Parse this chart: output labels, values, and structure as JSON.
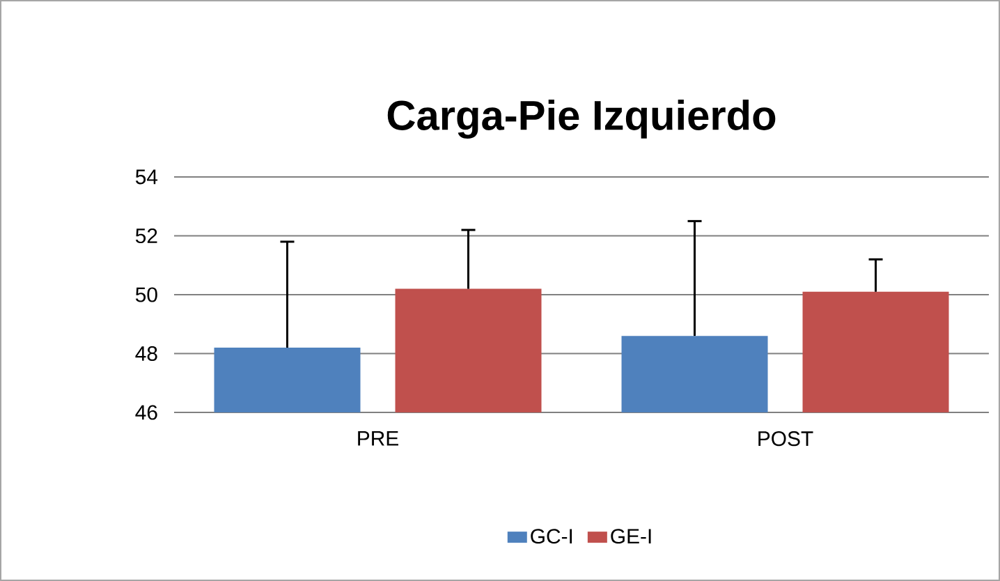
{
  "chart_data": {
    "type": "bar",
    "title": "Carga-Pie Izquierdo",
    "categories": [
      "PRE",
      "POST"
    ],
    "series": [
      {
        "name": "GC-I",
        "color": "#4f81bd",
        "values": [
          48.2,
          48.6
        ],
        "errors": [
          [
            48.2,
            51.8
          ],
          [
            48.6,
            52.5
          ]
        ]
      },
      {
        "name": "GE-I",
        "color": "#c0504d",
        "values": [
          50.2,
          50.1
        ],
        "errors": [
          [
            50.2,
            52.2
          ],
          [
            50.1,
            51.2
          ]
        ]
      }
    ],
    "ylim": [
      46,
      54
    ],
    "yticks": [
      46,
      48,
      50,
      52,
      54
    ],
    "grid": "y",
    "legend": "bottom"
  }
}
